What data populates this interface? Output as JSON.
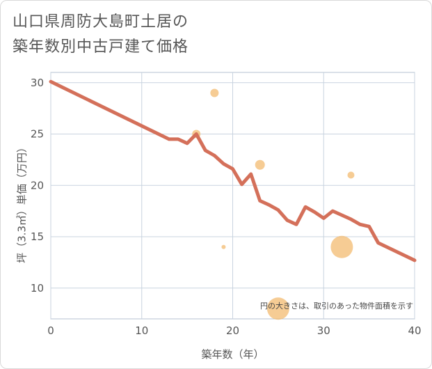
{
  "title_line1": "山口県周防大島町土居の",
  "title_line2": "築年数別中古戸建て価格",
  "chart_data": {
    "type": "scatter",
    "title": "山口県周防大島町土居の築年数別中古戸建て価格",
    "xlabel": "築年数（年）",
    "ylabel": "坪（3.3㎡）単価（万円）",
    "xlim": [
      0,
      40
    ],
    "ylim": [
      7,
      31
    ],
    "x_ticks": [
      0,
      10,
      20,
      30,
      40
    ],
    "y_ticks": [
      10,
      15,
      20,
      25,
      30
    ],
    "grid": true,
    "note": "円の大きさは、取引のあった物件面積を示す",
    "colors": {
      "line": "#d4705a",
      "bubble": "#f2b96b",
      "grid": "#c8d3df",
      "border": "#b5c2d0"
    },
    "scatter": [
      {
        "x": 18,
        "y": 29,
        "size": 6
      },
      {
        "x": 16,
        "y": 25,
        "size": 6
      },
      {
        "x": 23,
        "y": 22,
        "size": 7
      },
      {
        "x": 33,
        "y": 21,
        "size": 5
      },
      {
        "x": 19,
        "y": 14,
        "size": 3
      },
      {
        "x": 32,
        "y": 14,
        "size": 16
      },
      {
        "x": 25,
        "y": 8,
        "size": 16
      }
    ],
    "line": {
      "x": [
        0,
        13,
        14,
        15,
        16,
        17,
        18,
        19,
        20,
        21,
        22,
        23,
        24,
        25,
        26,
        27,
        28,
        29,
        30,
        31,
        32,
        33,
        34,
        35,
        36,
        40
      ],
      "y": [
        30.1,
        24.5,
        24.5,
        24.1,
        25.0,
        23.4,
        22.9,
        22.1,
        21.6,
        20.1,
        21.1,
        18.5,
        18.1,
        17.6,
        16.6,
        16.2,
        17.9,
        17.4,
        16.8,
        17.5,
        17.1,
        16.7,
        16.2,
        16.0,
        14.4,
        12.7
      ]
    }
  }
}
